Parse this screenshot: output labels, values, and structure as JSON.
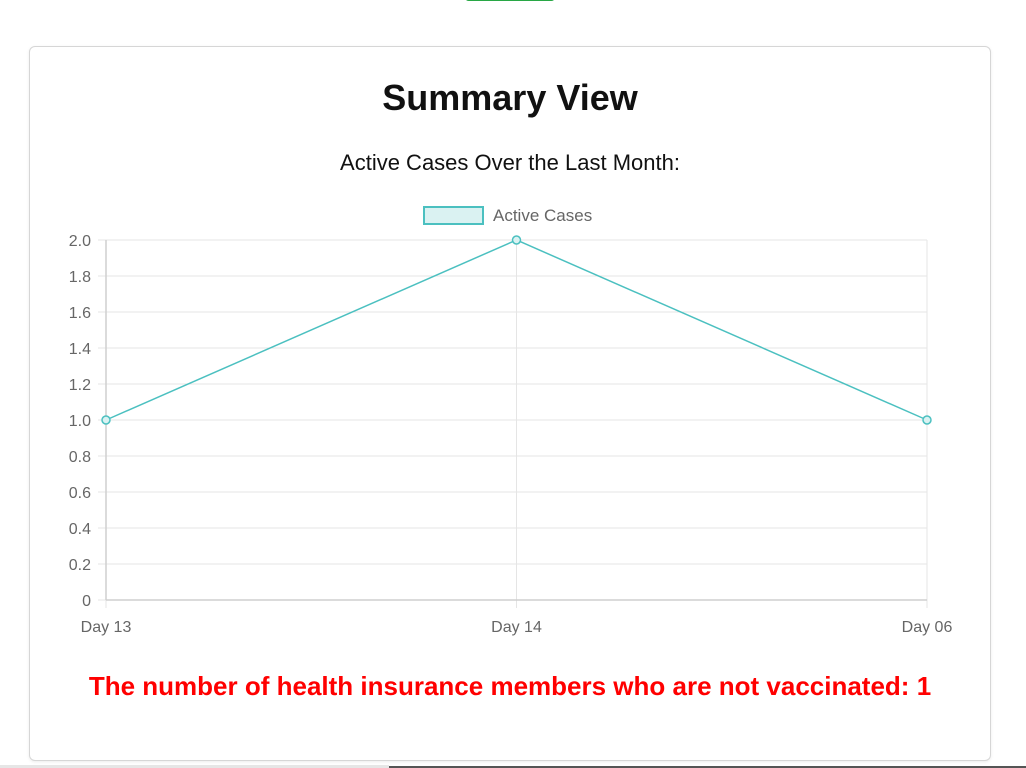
{
  "summary": {
    "title": "Summary View",
    "subtitle": "Active Cases Over the Last Month:",
    "notice": "The number of health insurance members who are not vaccinated: 1"
  },
  "colors": {
    "line": "#4bc0c0",
    "legendFill": "#daf2f2",
    "notice": "#ff0000",
    "grid": "#e5e5e5"
  },
  "chart_data": {
    "type": "line",
    "categories": [
      "Day 13",
      "Day 14",
      "Day 06"
    ],
    "series": [
      {
        "name": "Active Cases",
        "values": [
          1,
          2,
          1
        ]
      }
    ],
    "ylim": [
      0,
      2
    ],
    "yticks": [
      "0",
      "0.2",
      "0.4",
      "0.6",
      "0.8",
      "1.0",
      "1.2",
      "1.4",
      "1.6",
      "1.8",
      "2.0"
    ],
    "yticks_values": [
      0,
      0.2,
      0.4,
      0.6,
      0.8,
      1.0,
      1.2,
      1.4,
      1.6,
      1.8,
      2.0
    ],
    "legend_position": "top",
    "grid": true
  }
}
